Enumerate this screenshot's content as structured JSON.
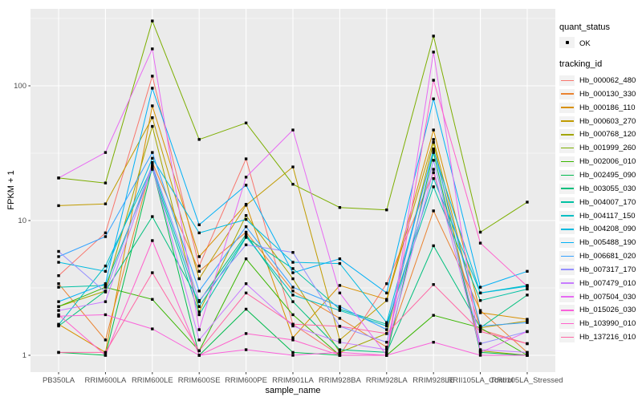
{
  "legend": {
    "quant_status_title": "quant_status",
    "quant_status_ok": "OK",
    "tracking_id_title": "tracking_id"
  },
  "chart_data": {
    "type": "line",
    "title": "",
    "xlabel": "sample_name",
    "ylabel": "FPKM + 1",
    "y_scale": "log10",
    "ylim": [
      1,
      330
    ],
    "y_ticks": [
      1,
      10,
      100
    ],
    "y_minor_ticks": [
      3.162,
      31.62,
      316.2
    ],
    "grid": true,
    "legend_position": "right",
    "point_marker": "small black square (quant_status = OK)",
    "categories": [
      "PB350LA",
      "RRIM600LA",
      "RRIM600LE",
      "RRIM600SE",
      "RRIM600PE",
      "RRIM901LA",
      "RRIM928BA",
      "RRIM928LA",
      "RRIM928LE",
      "RRII105LA_Control",
      "RRII105LA_Stressed"
    ],
    "series": [
      {
        "name": "Hb_000062_480",
        "color": "#F8766D",
        "values": [
          3.9,
          8.1,
          118,
          4.6,
          28.7,
          1.7,
          1.0,
          3.4,
          22.7,
          1.55,
          1.22
        ]
      },
      {
        "name": "Hb_000130_330",
        "color": "#EA8331",
        "values": [
          3.4,
          1.3,
          27,
          4.2,
          8.2,
          3.0,
          1.88,
          1.15,
          11.8,
          2.15,
          1.05
        ]
      },
      {
        "name": "Hb_000186_110",
        "color": "#D89000",
        "values": [
          1.7,
          1.05,
          71,
          5.4,
          13.2,
          1.35,
          3.3,
          2.6,
          47,
          2.07,
          1.85
        ]
      },
      {
        "name": "Hb_000603_270",
        "color": "#C09B00",
        "values": [
          12.9,
          13.3,
          58,
          3.7,
          13.0,
          25,
          1.3,
          2.55,
          40,
          1.6,
          1.8
        ]
      },
      {
        "name": "Hb_000768_120",
        "color": "#A3A500",
        "values": [
          2.3,
          3.0,
          50,
          2.1,
          10.9,
          3.7,
          1.05,
          1.45,
          38,
          1.08,
          1.0
        ]
      },
      {
        "name": "Hb_001999_260",
        "color": "#7CAE00",
        "values": [
          20.7,
          19.0,
          303,
          40,
          53,
          18.6,
          12.5,
          12.0,
          234,
          8.2,
          13.7
        ]
      },
      {
        "name": "Hb_002006_010",
        "color": "#39B600",
        "values": [
          2.3,
          3.2,
          2.6,
          1.08,
          5.2,
          2.0,
          1.0,
          1.0,
          1.98,
          1.6,
          1.0
        ]
      },
      {
        "name": "Hb_002495_090",
        "color": "#00BB4E",
        "values": [
          1.05,
          1.0,
          25,
          1.0,
          2.2,
          1.05,
          1.0,
          1.0,
          32,
          1.05,
          1.0
        ]
      },
      {
        "name": "Hb_003055_030",
        "color": "#00BF7D",
        "values": [
          1.65,
          3.0,
          10.7,
          2.5,
          7.9,
          2.5,
          1.1,
          1.05,
          6.5,
          1.6,
          2.8
        ]
      },
      {
        "name": "Hb_004007_170",
        "color": "#00C1A3",
        "values": [
          3.2,
          3.3,
          24,
          2.0,
          7.5,
          4.4,
          2.2,
          1.7,
          17.8,
          2.55,
          3.1
        ]
      },
      {
        "name": "Hb_004117_150",
        "color": "#00BFC4",
        "values": [
          1.68,
          4.6,
          25,
          2.3,
          7.6,
          2.8,
          2.15,
          1.65,
          20.5,
          2.9,
          3.3
        ]
      },
      {
        "name": "Hb_004208_090",
        "color": "#00BAE0",
        "values": [
          4.9,
          4.2,
          29,
          8.1,
          10.2,
          4.9,
          4.8,
          1.75,
          33,
          2.9,
          3.25
        ]
      },
      {
        "name": "Hb_005488_190",
        "color": "#00B0F6",
        "values": [
          2.5,
          3.4,
          96,
          9.3,
          18.3,
          4.1,
          5.2,
          2.9,
          80,
          3.2,
          4.2
        ]
      },
      {
        "name": "Hb_006681_020",
        "color": "#35A2FF",
        "values": [
          5.4,
          7.6,
          32,
          3.0,
          9.0,
          3.2,
          2.3,
          1.55,
          34,
          1.65,
          1.75
        ]
      },
      {
        "name": "Hb_007317_170",
        "color": "#9590FF",
        "values": [
          5.9,
          2.95,
          26,
          2.55,
          6.6,
          5.8,
          1.64,
          1.25,
          28,
          1.22,
          1.5
        ]
      },
      {
        "name": "Hb_007479_010",
        "color": "#C77CFF",
        "values": [
          2.15,
          2.5,
          25,
          1.3,
          3.4,
          1.65,
          1.25,
          1.1,
          24,
          1.1,
          1.05
        ]
      },
      {
        "name": "Hb_007504_030",
        "color": "#E76BF3",
        "values": [
          20.7,
          32,
          188,
          1.55,
          21,
          47,
          2.9,
          1.0,
          178,
          1.05,
          1.5
        ]
      },
      {
        "name": "Hb_015026_030",
        "color": "#FA62DB",
        "values": [
          1.95,
          2.0,
          1.57,
          1.0,
          1.1,
          1.0,
          1.05,
          1.0,
          1.25,
          1.0,
          1.0
        ]
      },
      {
        "name": "Hb_103990_010",
        "color": "#FF61CC",
        "values": [
          2.0,
          1.0,
          7.1,
          1.0,
          1.45,
          1.3,
          1.0,
          1.0,
          110,
          6.8,
          3.25
        ]
      },
      {
        "name": "Hb_137216_010",
        "color": "#FF67A4",
        "values": [
          1.05,
          1.05,
          4.1,
          1.08,
          2.9,
          1.7,
          1.64,
          1.45,
          3.35,
          1.5,
          1.22
        ]
      }
    ],
    "theme": {
      "panel_bg": "#EBEBEB",
      "grid_major": "#FFFFFF",
      "grid_minor": "#FFFFFF",
      "tick_color": "#333333",
      "axis_text_color": "#4D4D4D",
      "point_color": "#000000"
    }
  }
}
